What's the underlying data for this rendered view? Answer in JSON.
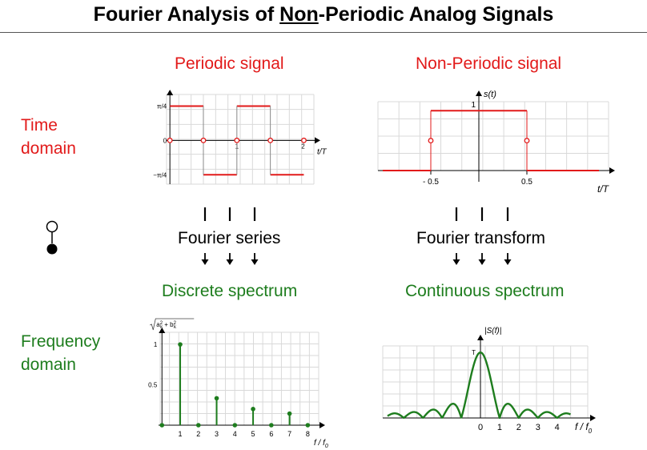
{
  "title": {
    "pre": "Fourier Analysis of ",
    "underlined": "Non",
    "post": "-Periodic Analog Signals"
  },
  "rows": {
    "time": [
      "Time",
      "domain"
    ],
    "freq": [
      "Frequency",
      "domain"
    ]
  },
  "columns": {
    "left": {
      "header": "Periodic signal",
      "transform": "Fourier series",
      "spectrum": "Discrete spectrum"
    },
    "right": {
      "header": "Non-Periodic signal",
      "transform": "Fourier transform",
      "spectrum": "Continuous spectrum"
    }
  },
  "colors": {
    "signal": "#e21a1a",
    "spectrum": "#1e7d1e",
    "grid": "#d9d9d9"
  },
  "icons": [
    "down-arrow-icon",
    "toggle-indicator-icon"
  ],
  "chart_data": [
    {
      "type": "line",
      "name": "periodic-square-wave",
      "xlabel": "t/T",
      "ylabel": "",
      "tick_labels_x": [
        "1",
        "2"
      ],
      "tick_labels_y": [
        "π/4",
        "0",
        "−π/4"
      ],
      "x": [
        0,
        0.5,
        0.5,
        1,
        1,
        1.5,
        1.5,
        2
      ],
      "y": [
        0.785,
        0.785,
        -0.785,
        -0.785,
        0.785,
        0.785,
        -0.785,
        -0.785
      ],
      "discontinuity_points_t": [
        0,
        0.5,
        1,
        1.5,
        2
      ],
      "discontinuity_value": 0,
      "xlim": [
        -0.05,
        2.15
      ],
      "ylim": [
        -1,
        1.05
      ],
      "grid": true
    },
    {
      "type": "line",
      "name": "rectangular-pulse",
      "xlabel": "t/T",
      "ylabel": "s(t)",
      "tick_labels_x": [
        "- 0.5",
        "0.5"
      ],
      "tick_labels_y": [
        "1"
      ],
      "x": [
        -1,
        -0.5,
        -0.5,
        0.5,
        0.5,
        1.25
      ],
      "y": [
        0,
        0,
        1,
        1,
        0,
        0
      ],
      "discontinuity_points_t": [
        -0.5,
        0.5
      ],
      "discontinuity_value": 0.5,
      "xlim": [
        -1.05,
        1.35
      ],
      "ylim": [
        0,
        1.15
      ],
      "grid": true
    },
    {
      "type": "bar",
      "name": "discrete-spectrum",
      "xlabel": "f/f0",
      "ylabel": "√(a_k² + b_k²)",
      "x": [
        0,
        1,
        2,
        3,
        4,
        5,
        6,
        7,
        8
      ],
      "values": [
        0,
        1,
        0,
        0.333,
        0,
        0.2,
        0,
        0.143,
        0
      ],
      "tick_labels_x": [
        "1",
        "2",
        "3",
        "4",
        "5",
        "6",
        "7",
        "8"
      ],
      "tick_labels_y": [
        "1",
        "0.5"
      ],
      "xlim": [
        -0.1,
        8.6
      ],
      "ylim": [
        0,
        1.15
      ],
      "grid": true
    },
    {
      "type": "line",
      "name": "continuous-spectrum",
      "function": "|sinc(f)|",
      "xlabel": "f/f0",
      "ylabel": "|S(f)|",
      "peak_label": "T",
      "tick_labels_x": [
        "0",
        "1",
        "2",
        "3",
        "4"
      ],
      "xlim": [
        -5.1,
        5.6
      ],
      "ylim": [
        0,
        1.1
      ],
      "grid": true
    }
  ]
}
